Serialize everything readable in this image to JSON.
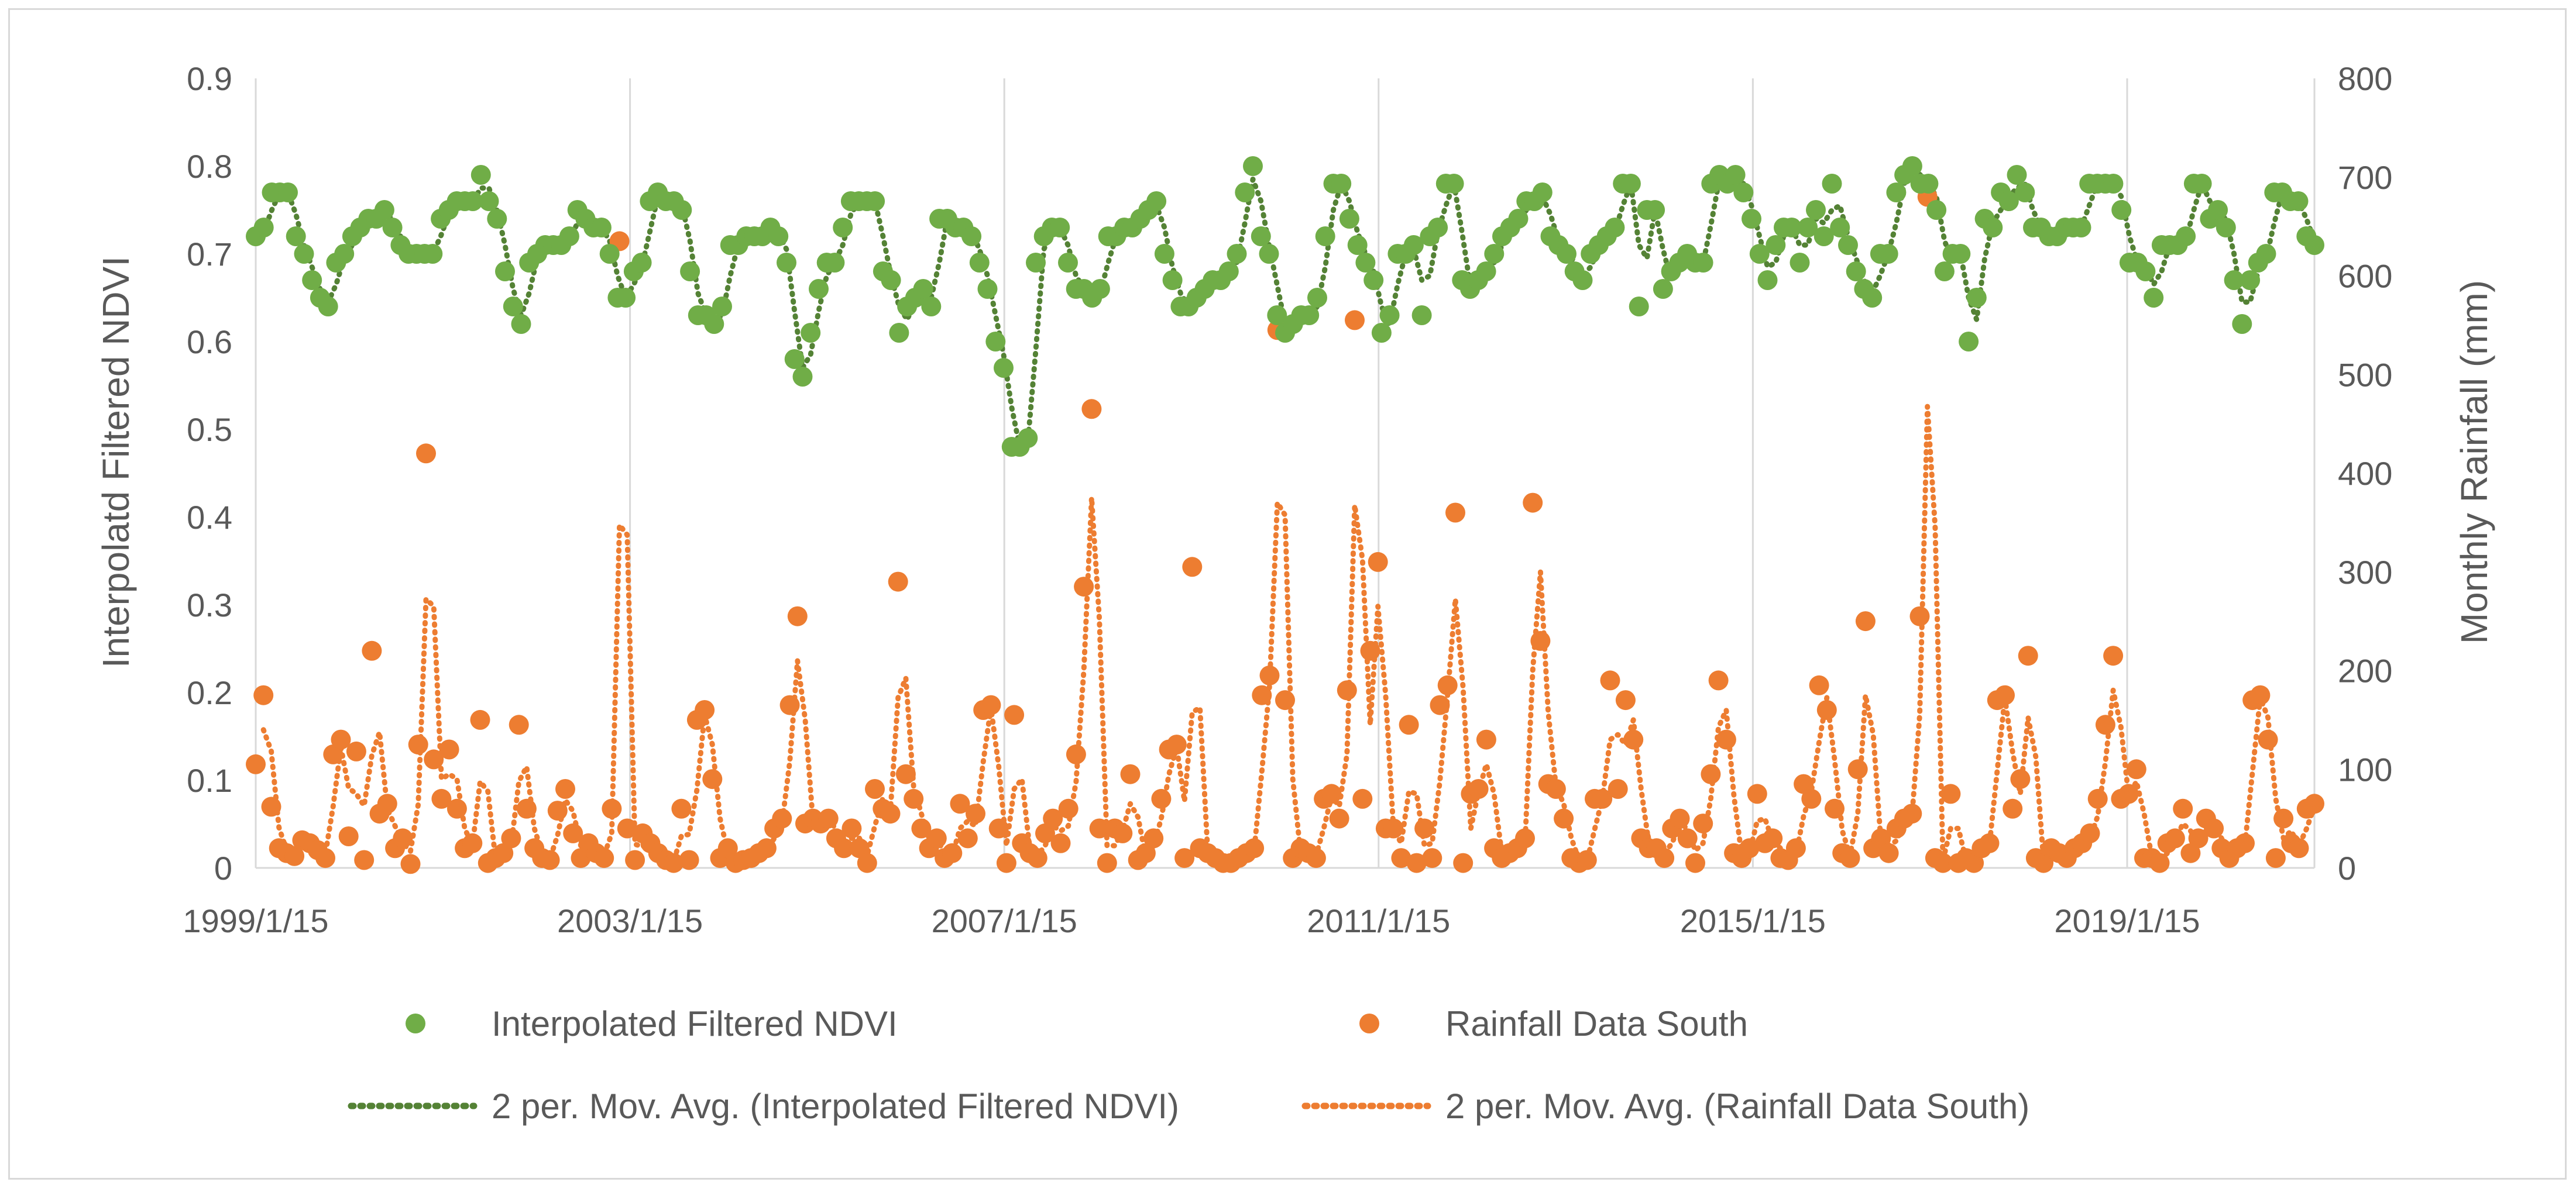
{
  "chart_data": {
    "type": "scatter",
    "title": "",
    "xlabel": "",
    "ylabel": "Interpolatd Filtered NDVI",
    "y2label": "Monthly Rainfall (mm)",
    "x_start": "1999/1/15",
    "x_end": "2021/1/15",
    "x_ticks": [
      "1999/1/15",
      "2003/1/15",
      "2007/1/15",
      "2011/1/15",
      "2015/1/15",
      "2019/1/15"
    ],
    "ylim": [
      0,
      0.9
    ],
    "y_ticks": [
      "0",
      "0.1",
      "0.2",
      "0.3",
      "0.4",
      "0.5",
      "0.6",
      "0.7",
      "0.8",
      "0.9"
    ],
    "y2lim": [
      0,
      800
    ],
    "y2_ticks": [
      "0",
      "100",
      "200",
      "300",
      "400",
      "500",
      "600",
      "700",
      "800"
    ],
    "grid": "vertical",
    "legend_position": "bottom",
    "colors": {
      "ndvi": "#70ad47",
      "ndvi_trend": "#548235",
      "rain": "#ed7d31",
      "grid": "#d9d9d9",
      "text": "#595959"
    },
    "legend": {
      "ndvi": "Interpolated Filtered NDVI",
      "rain": "Rainfall Data South",
      "ndvi_trend": "2 per. Mov. Avg. (Interpolated Filtered NDVI)",
      "rain_trend": "2 per. Mov. Avg. (Rainfall Data South)"
    },
    "series": [
      {
        "name": "Interpolated Filtered NDVI",
        "axis": "left",
        "values": [
          0.72,
          0.73,
          0.77,
          0.77,
          0.77,
          0.72,
          0.7,
          0.67,
          0.65,
          0.64,
          0.69,
          0.7,
          0.72,
          0.73,
          0.74,
          0.74,
          0.75,
          0.73,
          0.71,
          0.7,
          0.7,
          0.7,
          0.7,
          0.74,
          0.75,
          0.76,
          0.76,
          0.76,
          0.79,
          0.76,
          0.74,
          0.68,
          0.64,
          0.62,
          0.69,
          0.7,
          0.71,
          0.71,
          0.71,
          0.72,
          0.75,
          0.74,
          0.73,
          0.73,
          0.7,
          0.65,
          0.65,
          0.68,
          0.69,
          0.76,
          0.77,
          0.76,
          0.76,
          0.75,
          0.68,
          0.63,
          0.63,
          0.62,
          0.64,
          0.71,
          0.71,
          0.72,
          0.72,
          0.72,
          0.73,
          0.72,
          0.69,
          0.58,
          0.56,
          0.61,
          0.66,
          0.69,
          0.69,
          0.73,
          0.76,
          0.76,
          0.76,
          0.76,
          0.68,
          0.67,
          0.61,
          0.64,
          0.65,
          0.66,
          0.64,
          0.74,
          0.74,
          0.73,
          0.73,
          0.72,
          0.69,
          0.66,
          0.6,
          0.57,
          0.48,
          0.48,
          0.49,
          0.69,
          0.72,
          0.73,
          0.73,
          0.69,
          0.66,
          0.66,
          0.65,
          0.66,
          0.72,
          0.72,
          0.73,
          0.73,
          0.74,
          0.75,
          0.76,
          0.7,
          0.67,
          0.64,
          0.64,
          0.65,
          0.66,
          0.67,
          0.67,
          0.68,
          0.7,
          0.77,
          0.8,
          0.72,
          0.7,
          0.63,
          0.61,
          0.62,
          0.63,
          0.63,
          0.65,
          0.72,
          0.78,
          0.78,
          0.74,
          0.71,
          0.69,
          0.67,
          0.61,
          0.63,
          0.7,
          0.7,
          0.71,
          0.63,
          0.72,
          0.73,
          0.78,
          0.78,
          0.67,
          0.66,
          0.67,
          0.68,
          0.7,
          0.72,
          0.73,
          0.74,
          0.76,
          0.76,
          0.77,
          0.72,
          0.71,
          0.7,
          0.68,
          0.67,
          0.7,
          0.71,
          0.72,
          0.73,
          0.78,
          0.78,
          0.64,
          0.75,
          0.75,
          0.66,
          0.68,
          0.69,
          0.7,
          0.69,
          0.69,
          0.78,
          0.79,
          0.78,
          0.79,
          0.77,
          0.74,
          0.7,
          0.67,
          0.71,
          0.73,
          0.73,
          0.69,
          0.73,
          0.75,
          0.72,
          0.78,
          0.73,
          0.71,
          0.68,
          0.66,
          0.65,
          0.7,
          0.7,
          0.77,
          0.79,
          0.8,
          0.78,
          0.78,
          0.75,
          0.68,
          0.7,
          0.7,
          0.6,
          0.65,
          0.74,
          0.73,
          0.77,
          0.76,
          0.79,
          0.77,
          0.73,
          0.73,
          0.72,
          0.72,
          0.73,
          0.73,
          0.73,
          0.78,
          0.78,
          0.78,
          0.78,
          0.75,
          0.69,
          0.69,
          0.68,
          0.65,
          0.71,
          0.71,
          0.71,
          0.72,
          0.78,
          0.78,
          0.74,
          0.75,
          0.73,
          0.67,
          0.62,
          0.67,
          0.69,
          0.7,
          0.77,
          0.77,
          0.76,
          0.76,
          0.72,
          0.71
        ]
      },
      {
        "name": "Rainfall Data South",
        "axis": "right",
        "values": [
          105,
          175,
          62,
          20,
          15,
          12,
          28,
          25,
          18,
          10,
          115,
          130,
          32,
          118,
          8,
          220,
          55,
          65,
          20,
          30,
          4,
          125,
          420,
          110,
          70,
          120,
          60,
          20,
          25,
          150,
          5,
          10,
          15,
          30,
          145,
          60,
          20,
          10,
          8,
          58,
          80,
          35,
          10,
          25,
          15,
          10,
          60,
          635,
          40,
          8,
          35,
          25,
          15,
          8,
          5,
          60,
          8,
          150,
          160,
          90,
          10,
          20,
          5,
          8,
          10,
          15,
          20,
          40,
          50,
          165,
          255,
          45,
          50,
          45,
          50,
          30,
          20,
          40,
          20,
          5,
          80,
          60,
          55,
          290,
          95,
          70,
          40,
          20,
          30,
          10,
          15,
          65,
          30,
          55,
          160,
          165,
          40,
          5,
          155,
          25,
          15,
          10,
          35,
          50,
          25,
          60,
          115,
          285,
          465,
          40,
          5,
          40,
          35,
          95,
          8,
          15,
          30,
          70,
          120,
          125,
          10,
          305,
          20,
          15,
          10,
          5,
          5,
          10,
          15,
          20,
          175,
          195,
          545,
          170,
          10,
          20,
          15,
          10,
          70,
          75,
          50,
          180,
          555,
          70,
          220,
          310,
          40,
          40,
          10,
          145,
          5,
          40,
          10,
          165,
          185,
          360,
          5,
          75,
          80,
          130,
          20,
          10,
          15,
          20,
          30,
          370,
          230,
          85,
          80,
          50,
          10,
          5,
          8,
          70,
          70,
          190,
          80,
          170,
          130,
          30,
          20,
          20,
          10,
          40,
          50,
          30,
          5,
          45,
          95,
          190,
          130,
          15,
          10,
          20,
          75,
          25,
          30,
          10,
          8,
          20,
          85,
          70,
          185,
          160,
          60,
          15,
          10,
          100,
          250,
          20,
          30,
          15,
          40,
          50,
          55,
          255,
          680,
          10,
          5,
          75,
          5,
          10,
          5,
          20,
          25,
          170,
          175,
          60,
          90,
          215,
          10,
          5,
          20,
          15,
          10,
          20,
          25,
          35,
          70,
          145,
          215,
          70,
          75,
          100,
          10,
          10,
          5,
          25,
          30,
          60,
          15,
          30,
          50,
          40,
          20,
          10,
          20,
          25,
          170,
          175,
          130,
          10,
          50,
          25,
          20,
          60,
          65
        ]
      }
    ]
  }
}
